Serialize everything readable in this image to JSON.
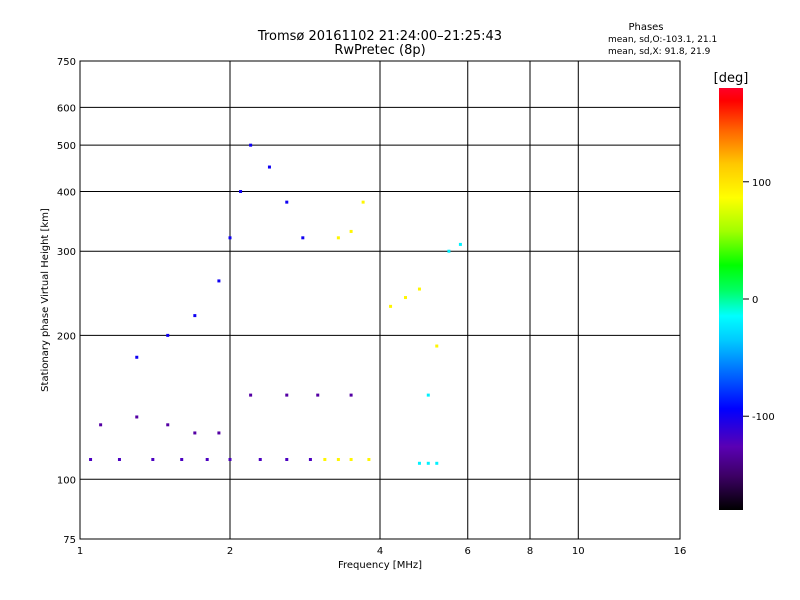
{
  "chart_data": {
    "type": "scatter",
    "title": "Tromsø 20161102 21:24:00–21:25:43",
    "subtitle": "RwPretec (8p)",
    "xlabel": "Frequency [MHz]",
    "ylabel": "Stationary phase Virtual Height [km]",
    "x_scale": "log",
    "y_scale": "log",
    "xlim": [
      1,
      16
    ],
    "ylim": [
      75,
      750
    ],
    "x_ticks": [
      1,
      2,
      4,
      6,
      8,
      10,
      16
    ],
    "y_ticks": [
      75,
      100,
      200,
      300,
      400,
      500,
      600,
      750
    ],
    "grid": true,
    "phases_box": {
      "title": "Phases",
      "line1": "mean, sd,O:-103.1, 21.1",
      "line2": "mean, sd,X:  91.8, 21.9"
    },
    "colorbar": {
      "label": "[deg]",
      "range": [
        -180,
        180
      ],
      "ticks": [
        100,
        0,
        -100
      ],
      "colors": [
        "#000000",
        "#3c0064",
        "#5a00b4",
        "#0000ff",
        "#0064ff",
        "#00c8ff",
        "#00ffff",
        "#00ff64",
        "#00ff00",
        "#a0ff00",
        "#ffff00",
        "#ffc800",
        "#ff6400",
        "#ff0000",
        "#ff0028"
      ]
    },
    "series": [
      {
        "color_phase": -120,
        "points": [
          [
            1.05,
            110
          ],
          [
            1.2,
            110
          ],
          [
            1.4,
            110
          ],
          [
            1.6,
            110
          ],
          [
            1.8,
            110
          ],
          [
            2.0,
            110
          ],
          [
            2.3,
            110
          ],
          [
            2.6,
            110
          ],
          [
            2.9,
            110
          ]
        ]
      },
      {
        "color_phase": -130,
        "points": [
          [
            1.1,
            130
          ],
          [
            1.3,
            135
          ],
          [
            1.5,
            130
          ],
          [
            1.7,
            125
          ],
          [
            1.9,
            125
          ],
          [
            2.2,
            150
          ],
          [
            2.6,
            150
          ],
          [
            3.0,
            150
          ],
          [
            3.5,
            150
          ]
        ]
      },
      {
        "color_phase": -100,
        "points": [
          [
            1.3,
            180
          ],
          [
            1.5,
            200
          ],
          [
            1.7,
            220
          ],
          [
            1.9,
            260
          ],
          [
            2.0,
            320
          ],
          [
            2.1,
            400
          ],
          [
            2.2,
            500
          ],
          [
            2.4,
            450
          ],
          [
            2.6,
            380
          ],
          [
            2.8,
            320
          ]
        ]
      },
      {
        "color_phase": 90,
        "points": [
          [
            3.1,
            110
          ],
          [
            3.3,
            110
          ],
          [
            3.5,
            110
          ],
          [
            3.8,
            110
          ],
          [
            3.3,
            320
          ],
          [
            3.5,
            330
          ],
          [
            3.7,
            380
          ],
          [
            4.2,
            230
          ],
          [
            4.5,
            240
          ],
          [
            4.8,
            250
          ],
          [
            5.2,
            190
          ]
        ]
      },
      {
        "color_phase": -20,
        "points": [
          [
            4.8,
            108
          ],
          [
            5.0,
            108
          ],
          [
            5.2,
            108
          ],
          [
            5.0,
            150
          ],
          [
            5.5,
            300
          ],
          [
            5.8,
            310
          ]
        ]
      }
    ]
  }
}
